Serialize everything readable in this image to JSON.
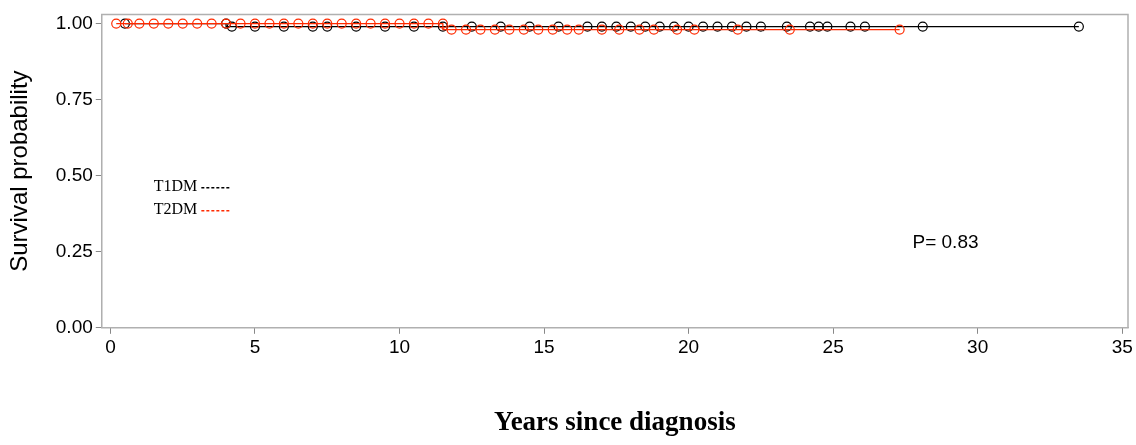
{
  "chart_data": {
    "type": "step",
    "xlabel": "Years since diagnosis",
    "ylabel": "Survival probability",
    "xlim": [
      -0.3,
      35.2
    ],
    "xticks": [
      0,
      5,
      10,
      15,
      20,
      25,
      30,
      35
    ],
    "ylim": [
      0,
      1.03
    ],
    "yticks": [
      {
        "value": 0,
        "label": "0.00"
      },
      {
        "value": 0.25,
        "label": "0.25"
      },
      {
        "value": 0.5,
        "label": "0.50"
      },
      {
        "value": 0.75,
        "label": "0.75"
      },
      {
        "value": 1,
        "label": "1.00"
      }
    ],
    "marker": "circle",
    "legend": "left",
    "grid": false,
    "annotations": [
      "P= 0.83"
    ],
    "series": [
      {
        "name": "T1DM",
        "color": "#000000",
        "x": [
          0.5,
          4,
          4.2,
          5,
          6,
          7,
          7.5,
          8.5,
          9.5,
          10.5,
          11.5,
          12.5,
          13.5,
          14.5,
          15.5,
          16.5,
          17,
          17.5,
          18,
          18.5,
          19,
          19.5,
          20,
          20.5,
          21,
          21.5,
          22,
          22.5,
          23.4,
          24.2,
          24.5,
          24.8,
          25.6,
          26.1,
          28.1,
          33.5
        ],
        "values": [
          1,
          1,
          0.99,
          0.99,
          0.99,
          0.99,
          0.99,
          0.99,
          0.99,
          0.99,
          0.99,
          0.99,
          0.99,
          0.99,
          0.99,
          0.99,
          0.99,
          0.99,
          0.99,
          0.99,
          0.99,
          0.99,
          0.99,
          0.99,
          0.99,
          0.99,
          0.99,
          0.99,
          0.99,
          0.99,
          0.99,
          0.99,
          0.99,
          0.99,
          0.99,
          0.99
        ]
      },
      {
        "name": "T2DM",
        "color": "#ff2a00",
        "x": [
          0.2,
          0.6,
          1,
          1.5,
          2,
          2.5,
          3,
          3.5,
          4,
          4.5,
          5,
          5.5,
          6,
          6.5,
          7,
          7.5,
          8,
          8.5,
          9,
          9.5,
          10,
          10.5,
          11,
          11.5,
          11.8,
          12.3,
          12.8,
          13.3,
          13.8,
          14.3,
          14.8,
          15.3,
          15.8,
          16.2,
          17,
          17.6,
          18.3,
          18.8,
          19.6,
          20.2,
          21.7,
          23.5,
          27.3
        ],
        "values": [
          1,
          1,
          1,
          1,
          1,
          1,
          1,
          1,
          1,
          1,
          1,
          1,
          1,
          1,
          1,
          1,
          1,
          1,
          1,
          1,
          1,
          1,
          1,
          1,
          0.98,
          0.98,
          0.98,
          0.98,
          0.98,
          0.98,
          0.98,
          0.98,
          0.98,
          0.98,
          0.98,
          0.98,
          0.98,
          0.98,
          0.98,
          0.98,
          0.98,
          0.98,
          0.98
        ]
      }
    ]
  }
}
